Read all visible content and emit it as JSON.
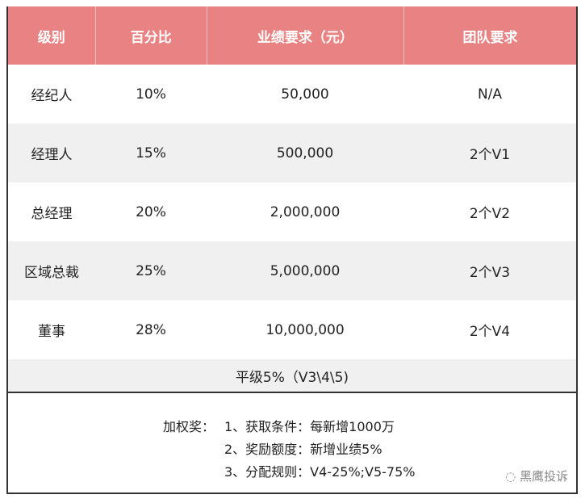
{
  "header": [
    "级别",
    "百分比",
    "业绩要求（元）",
    "团队要求"
  ],
  "rows": [
    [
      "经纪人",
      "10%",
      "50,000",
      "N/A"
    ],
    [
      "经理人",
      "15%",
      "500,000",
      "2个V1"
    ],
    [
      "总经理",
      "20%",
      "2,000,000",
      "2个V2"
    ],
    [
      "区域总裁",
      "25%",
      "5,000,000",
      "2个V3"
    ],
    [
      "董事",
      "28%",
      "10,000,000",
      "2个V4"
    ]
  ],
  "flat_bonus": "平级5%（V3\\4\\5)",
  "weighted_bonus": {
    "label": "加权奖：",
    "items": [
      "1、获取条件：每新增1000万",
      "2、奖励额度：新增业绩5%",
      "3、分配规则：V4-25%;V5-75%"
    ]
  },
  "watermark": "黑鹰投诉",
  "colors": {
    "header": "#e98383",
    "stripe": "#f0f0f0"
  }
}
